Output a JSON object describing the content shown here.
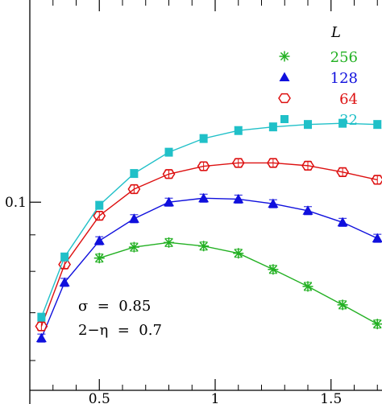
{
  "chart_data": {
    "type": "line",
    "title": "",
    "xlabel": "",
    "ylabel": "",
    "xlim": [
      0.2,
      1.72
    ],
    "ylim": [
      0.0545,
      0.192
    ],
    "y_scale": "log",
    "grid": false,
    "x_ticks": [
      {
        "value": 0.5,
        "label": "0.5"
      },
      {
        "value": 1.0,
        "label": "1"
      },
      {
        "value": 1.5,
        "label": "1.5"
      }
    ],
    "x_minor_ticks": [
      0.3,
      0.4,
      0.6,
      0.7,
      0.8,
      0.9,
      1.1,
      1.2,
      1.3,
      1.4,
      1.6,
      1.7
    ],
    "y_ticks": [
      {
        "value": 0.1,
        "label": "0.1"
      }
    ],
    "y_minor_ticks": [
      0.06,
      0.07,
      0.08,
      0.09,
      0.2
    ],
    "legend": {
      "title": "L",
      "position": "top-right"
    },
    "annotations": [
      "σ  =  0.85",
      "2−η  =  0.7"
    ],
    "series": [
      {
        "name": "256",
        "color": "#22b022",
        "marker": "asterisk",
        "x": [
          0.5,
          0.65,
          0.8,
          0.95,
          1.1,
          1.25,
          1.4,
          1.55,
          1.7
        ],
        "y": [
          0.0835,
          0.0865,
          0.0878,
          0.0868,
          0.0848,
          0.0805,
          0.0762,
          0.0718,
          0.0675
        ]
      },
      {
        "name": "128",
        "color": "#1010dd",
        "marker": "triangle",
        "x": [
          0.25,
          0.35,
          0.5,
          0.65,
          0.8,
          0.95,
          1.1,
          1.25,
          1.4,
          1.55,
          1.7
        ],
        "y": [
          0.0645,
          0.0772,
          0.0883,
          0.0948,
          0.1,
          0.1013,
          0.101,
          0.0995,
          0.0973,
          0.0937,
          0.089
        ]
      },
      {
        "name": "64",
        "color": "#dd1010",
        "marker": "hexagon",
        "x": [
          0.25,
          0.35,
          0.5,
          0.65,
          0.8,
          0.95,
          1.1,
          1.25,
          1.4,
          1.55,
          1.7
        ],
        "y": [
          0.067,
          0.0818,
          0.0957,
          0.1043,
          0.1095,
          0.1123,
          0.1135,
          0.1135,
          0.1125,
          0.1102,
          0.1075
        ]
      },
      {
        "name": "32",
        "color": "#20c0c8",
        "marker": "square",
        "x": [
          0.25,
          0.35,
          0.5,
          0.65,
          0.8,
          0.95,
          1.1,
          1.25,
          1.4,
          1.55,
          1.7
        ],
        "y": [
          0.069,
          0.0838,
          0.099,
          0.1097,
          0.1175,
          0.1228,
          0.126,
          0.1275,
          0.1285,
          0.129,
          0.1285
        ]
      }
    ]
  }
}
